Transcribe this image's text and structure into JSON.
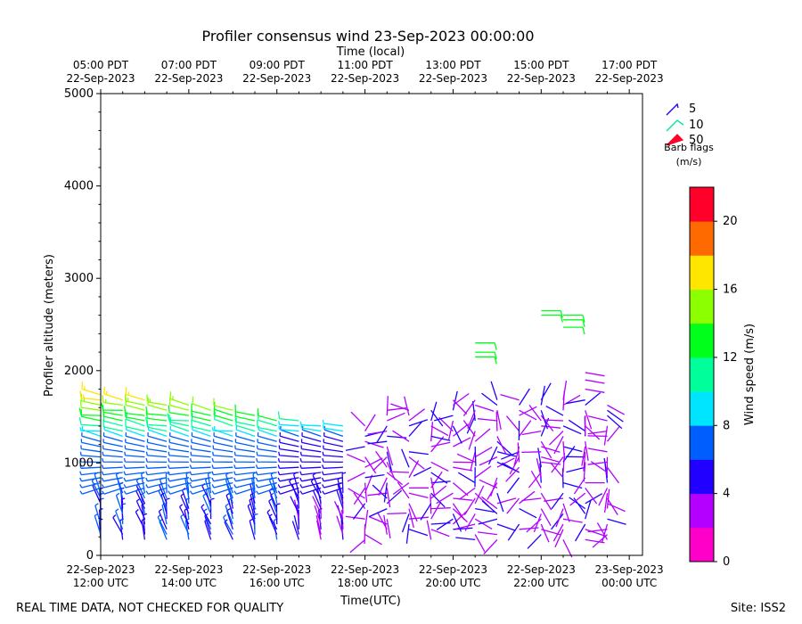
{
  "chart_data": {
    "type": "wind-barb-profile",
    "title": "Profiler consensus wind 23-Sep-2023 00:00:00",
    "top_axis_label": "Time (local)",
    "top_ticks": [
      {
        "t": 0,
        "line1": "05:00 PDT",
        "line2": "22-Sep-2023"
      },
      {
        "t": 2,
        "line1": "07:00 PDT",
        "line2": "22-Sep-2023"
      },
      {
        "t": 4,
        "line1": "09:00 PDT",
        "line2": "22-Sep-2023"
      },
      {
        "t": 6,
        "line1": "11:00 PDT",
        "line2": "22-Sep-2023"
      },
      {
        "t": 8,
        "line1": "13:00 PDT",
        "line2": "22-Sep-2023"
      },
      {
        "t": 10,
        "line1": "15:00 PDT",
        "line2": "22-Sep-2023"
      },
      {
        "t": 12,
        "line1": "17:00 PDT",
        "line2": "22-Sep-2023"
      }
    ],
    "bottom_ticks": [
      {
        "t": 0,
        "line1": "22-Sep-2023",
        "line2": "12:00 UTC"
      },
      {
        "t": 2,
        "line1": "22-Sep-2023",
        "line2": "14:00 UTC"
      },
      {
        "t": 4,
        "line1": "22-Sep-2023",
        "line2": "16:00 UTC"
      },
      {
        "t": 6,
        "line1": "22-Sep-2023",
        "line2": "18:00 UTC"
      },
      {
        "t": 8,
        "line1": "22-Sep-2023",
        "line2": "20:00 UTC"
      },
      {
        "t": 10,
        "line1": "22-Sep-2023",
        "line2": "22:00 UTC"
      },
      {
        "t": 12,
        "line1": "23-Sep-2023",
        "line2": "00:00 UTC"
      }
    ],
    "xlabel": "Time(UTC)",
    "ylabel": "Profiler altitude (meters)",
    "xlim": [
      0,
      12.3
    ],
    "ylim": [
      0,
      5000
    ],
    "yticks": [
      0,
      1000,
      2000,
      3000,
      4000,
      5000
    ],
    "y_minor_step": 200,
    "x_minor_step_hours": 0.5,
    "legend": {
      "location": "upper-right-outside",
      "entries": [
        "5",
        "10",
        "50"
      ],
      "caption1": "Barb flags",
      "caption2": "(m/s)"
    },
    "colorbar": {
      "label": "Wind speed (m/s)",
      "min": 0,
      "max": 22,
      "step": 2,
      "ticks": [
        0,
        4,
        8,
        12,
        16,
        20
      ],
      "colors": [
        "#ff00c8",
        "#b300ff",
        "#2200ff",
        "#005eff",
        "#00e5ff",
        "#00ff9a",
        "#00ff1a",
        "#8cff00",
        "#ffe600",
        "#ff6a00",
        "#ff002b"
      ]
    },
    "profile_times": [
      0,
      0.5,
      1,
      1.5,
      2,
      2.5,
      3,
      3.5,
      4,
      4.5,
      5,
      5.5,
      6,
      6.5,
      7,
      7.5,
      8,
      8.5,
      9,
      9.5,
      10,
      10.5,
      11,
      11.5
    ]
  },
  "footer": {
    "left": "REAL TIME DATA, NOT CHECKED FOR QUALITY",
    "right": "Site: ISS2"
  }
}
